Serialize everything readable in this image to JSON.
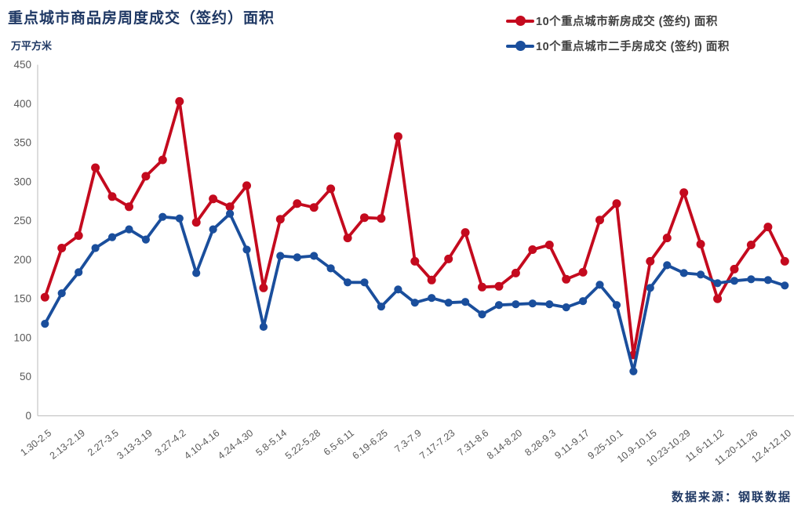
{
  "header": {
    "title": "重点城市商品房周度成交（签约）面积",
    "unit_label": "万平方米"
  },
  "legend": [
    {
      "label": "10个重点城市新房成交 (签约) 面积",
      "color": "#c40a1e"
    },
    {
      "label": "10个重点城市二手房成交 (签约) 面积",
      "color": "#1a4e9c"
    }
  ],
  "footer": {
    "source": "数据来源：钢联数据"
  },
  "colors": {
    "title_text": "#1f3864",
    "axis_line": "#c6c6c6",
    "tick_text": "#595959",
    "background": "#ffffff"
  },
  "chart_data": {
    "type": "line",
    "title": "重点城市商品房周度成交（签约）面积",
    "ylabel": "万平方米",
    "xlabel": "",
    "ylim": [
      0,
      450
    ],
    "y_ticks": [
      0,
      50,
      100,
      150,
      200,
      250,
      300,
      350,
      400,
      450
    ],
    "grid": false,
    "legend_position": "top-right",
    "categories": [
      "1.30-2.5",
      "",
      "2.13-2.19",
      "",
      "2.27-3.5",
      "",
      "3.13-3.19",
      "",
      "3.27-4.2",
      "",
      "4.10-4.16",
      "",
      "4.24-4.30",
      "",
      "5.8-5.14",
      "",
      "5.22-5.28",
      "",
      "6.5-6.11",
      "",
      "6.19-6.25",
      "",
      "7.3-7.9",
      "",
      "7.17-7.23",
      "",
      "7.31-8.6",
      "",
      "8.14-8.20",
      "",
      "8.28-9.3",
      "",
      "9.11-9.17",
      "",
      "9.25-10.1",
      "",
      "10.9-10.15",
      "",
      "10.23-10.29",
      "",
      "11.6-11.12",
      "",
      "11.20-11.26",
      "",
      "12.4-12.10"
    ],
    "series": [
      {
        "name": "10个重点城市新房成交 (签约) 面积",
        "color": "#c40a1e",
        "values": [
          152,
          215,
          231,
          318,
          281,
          268,
          307,
          328,
          403,
          248,
          278,
          268,
          295,
          164,
          252,
          272,
          267,
          291,
          228,
          254,
          253,
          358,
          198,
          174,
          201,
          235,
          165,
          166,
          183,
          213,
          219,
          175,
          184,
          251,
          272,
          78,
          198,
          228,
          286,
          220,
          150,
          188,
          219,
          242,
          198
        ]
      },
      {
        "name": "10个重点城市二手房成交 (签约) 面积",
        "color": "#1a4e9c",
        "values": [
          118,
          157,
          184,
          215,
          229,
          239,
          226,
          255,
          253,
          183,
          239,
          259,
          213,
          114,
          205,
          203,
          205,
          189,
          171,
          171,
          140,
          162,
          145,
          151,
          145,
          146,
          130,
          142,
          143,
          144,
          143,
          139,
          147,
          168,
          142,
          57,
          164,
          193,
          183,
          181,
          170,
          173,
          175,
          174,
          167
        ]
      }
    ]
  }
}
